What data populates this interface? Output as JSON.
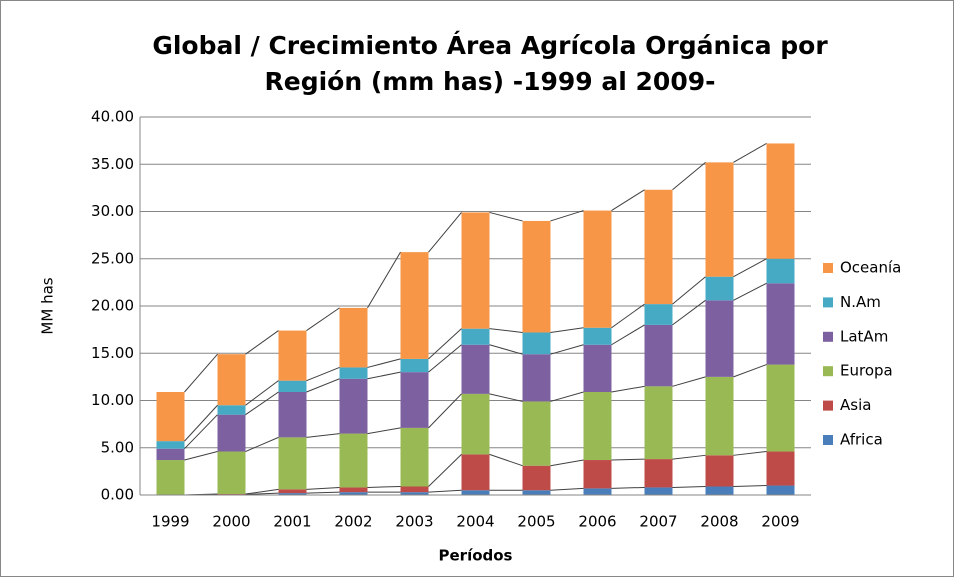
{
  "chart_data": {
    "type": "stacked_bar",
    "title": "Global / Crecimiento Área Agrícola Orgánica por Región (mm has) -1999 al 2009-",
    "x_label": "Períodos",
    "y_label": "MM has",
    "categories": [
      "1999",
      "2000",
      "2001",
      "2002",
      "2003",
      "2004",
      "2005",
      "2006",
      "2007",
      "2008",
      "2009"
    ],
    "series": [
      {
        "name": "Africa",
        "color": "#4a7ebb",
        "values": [
          0,
          0.05,
          0.2,
          0.3,
          0.3,
          0.5,
          0.5,
          0.7,
          0.8,
          0.9,
          1.0
        ]
      },
      {
        "name": "Asia",
        "color": "#be4b48",
        "values": [
          0,
          0.05,
          0.4,
          0.5,
          0.6,
          3.8,
          2.6,
          3.0,
          3.0,
          3.3,
          3.6
        ]
      },
      {
        "name": "Europa",
        "color": "#98b954",
        "values": [
          3.7,
          4.5,
          5.5,
          5.7,
          6.2,
          6.4,
          6.8,
          7.2,
          7.7,
          8.3,
          9.2
        ]
      },
      {
        "name": "LatAm",
        "color": "#7d60a0",
        "values": [
          1.2,
          3.9,
          4.8,
          5.8,
          5.9,
          5.2,
          5.0,
          5.0,
          6.5,
          8.1,
          8.6
        ]
      },
      {
        "name": "N.Am",
        "color": "#46aac5",
        "values": [
          0.8,
          1.0,
          1.2,
          1.2,
          1.4,
          1.7,
          2.3,
          1.8,
          2.2,
          2.5,
          2.6
        ]
      },
      {
        "name": "Oceanía",
        "color": "#f79646",
        "values": [
          5.2,
          5.4,
          5.3,
          6.3,
          11.3,
          12.3,
          11.8,
          12.4,
          12.1,
          12.1,
          12.2
        ]
      }
    ],
    "ylim": [
      0,
      40
    ],
    "yticks": [
      {
        "value": 0,
        "label": "0.00"
      },
      {
        "value": 5,
        "label": "5.00"
      },
      {
        "value": 10,
        "label": "10.00"
      },
      {
        "value": 15,
        "label": "15.00"
      },
      {
        "value": 20,
        "label": "20.00"
      },
      {
        "value": 25,
        "label": "25.00"
      },
      {
        "value": 30,
        "label": "30.00"
      },
      {
        "value": 35,
        "label": "35.00"
      },
      {
        "value": 40,
        "label": "40.00"
      }
    ],
    "grid": true,
    "legend": "right",
    "series_lines": true
  }
}
